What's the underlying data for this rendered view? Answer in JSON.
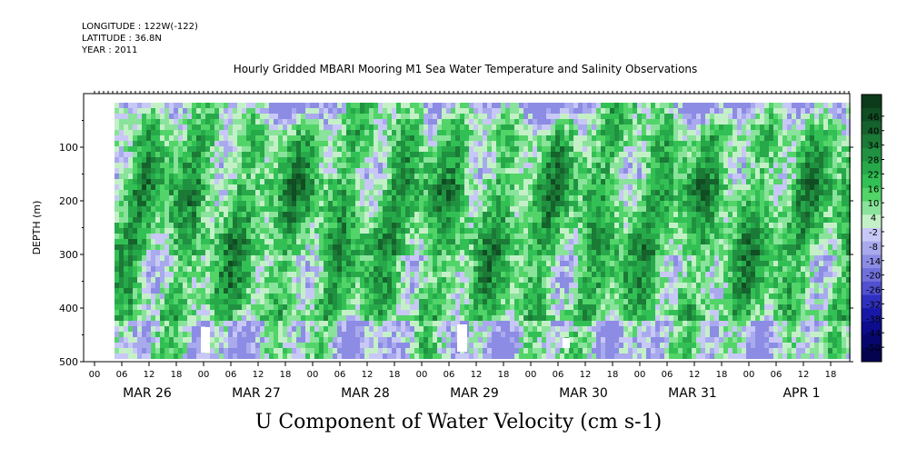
{
  "header": {
    "longitude": "LONGITUDE : 122W(-122)",
    "latitude": "LATITUDE : 36.8N",
    "year": "YEAR : 2011"
  },
  "chart_data": {
    "type": "heatmap",
    "title": "Hourly Gridded MBARI Mooring M1 Sea Water Temperature and Salinity Observations",
    "xlabel": "U Component of Water Velocity (cm s-1)",
    "ylabel": "DEPTH (m)",
    "y_ticks": [
      100,
      200,
      300,
      400,
      500
    ],
    "y_range": [
      500,
      0
    ],
    "hour_ticks": [
      "00",
      "06",
      "12",
      "18"
    ],
    "day_labels": [
      "MAR 26",
      "MAR 27",
      "MAR 28",
      "MAR 29",
      "MAR 30",
      "MAR 31",
      "APR  1"
    ],
    "x_range_days": [
      0,
      7
    ],
    "colorbar_levels": [
      "46",
      "40",
      "34",
      "28",
      "22",
      "16",
      "10",
      "4",
      "-2",
      "-8",
      "-14",
      "-20",
      "-26",
      "-32",
      "-38",
      "-44",
      "-50"
    ],
    "colorbar_colors": [
      "#0b3b1a",
      "#104d22",
      "#16622c",
      "#1b7a36",
      "#209140",
      "#27a94a",
      "#32c055",
      "#52d468",
      "#89e39a",
      "#c4f0c8",
      "#c8c8f6",
      "#a9a9ee",
      "#8c8ce4",
      "#7070dc",
      "#5050d0",
      "#3030c0",
      "#1818a8",
      "#0c0c8c",
      "#06066e",
      "#030350"
    ],
    "grid": false,
    "legend": "colorbar-right"
  }
}
